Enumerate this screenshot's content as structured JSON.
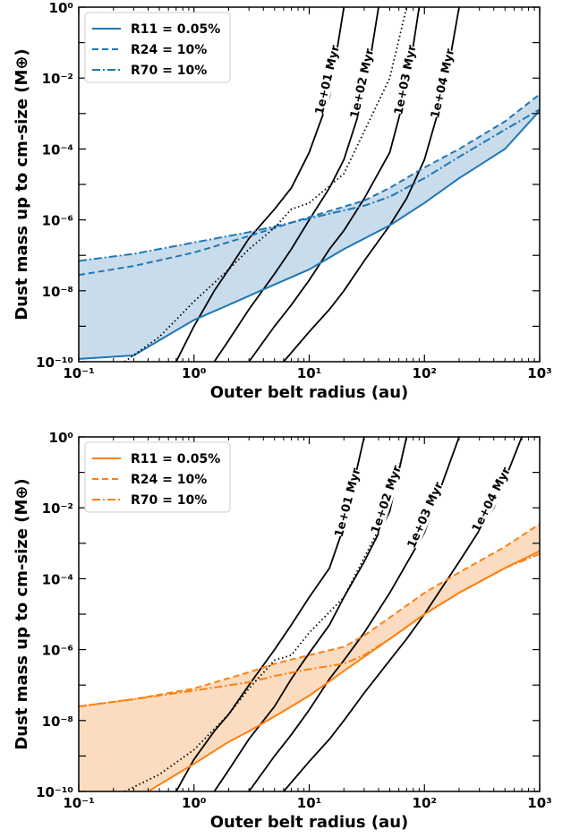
{
  "chart_data": [
    {
      "type": "line",
      "xlabel": "Outer belt radius (au)",
      "ylabel": "Dust mass up to cm-size (M⊕)",
      "xscale": "log",
      "yscale": "log",
      "xlim": [
        0.1,
        1000
      ],
      "ylim": [
        1e-10,
        1
      ],
      "x_ticks": [
        "10⁻¹",
        "10⁰",
        "10¹",
        "10²",
        "10³"
      ],
      "y_ticks": [
        "10⁻¹⁰",
        "10⁻⁸",
        "10⁻⁶",
        "10⁻⁴",
        "10⁻²",
        "10⁰"
      ],
      "legend_position": "top-left",
      "color": "#1f77b4",
      "fill_color": "#c9dcec",
      "shaded_region": "between R11 curve and the upper of the R24 / R70 curves",
      "series": [
        {
          "name": "R11 = 0.05%",
          "sub": "11",
          "style": "solid",
          "x": [
            0.1,
            0.3,
            0.5,
            1,
            2,
            5,
            10,
            20,
            50,
            100,
            200,
            500,
            1000
          ],
          "y": [
            1.2e-10,
            1.5e-10,
            4e-10,
            1.5e-09,
            4e-09,
            1.5e-08,
            4e-08,
            1.5e-07,
            7e-07,
            3e-06,
            1.5e-05,
            0.0001,
            0.0012
          ]
        },
        {
          "name": "R24 = 10%",
          "sub": "24",
          "style": "dashed",
          "x": [
            0.1,
            0.3,
            1,
            3,
            10,
            30,
            50,
            100,
            200,
            500,
            1000
          ],
          "y": [
            2.8e-08,
            5e-08,
            1.2e-07,
            3.5e-07,
            1.2e-06,
            3.5e-06,
            8e-06,
            3e-05,
            0.0001,
            0.0006,
            0.0035
          ]
        },
        {
          "name": "R70 = 10%",
          "sub": "70",
          "style": "dashdot",
          "x": [
            0.1,
            0.3,
            1,
            3,
            10,
            30,
            50,
            100,
            200,
            500,
            1000
          ],
          "y": [
            7e-08,
            1.1e-07,
            2.3e-07,
            4.5e-07,
            1.1e-06,
            2.5e-06,
            4.5e-06,
            1.5e-05,
            6e-05,
            0.00035,
            0.0013
          ]
        },
        {
          "name": "",
          "style": "dotted",
          "x": [
            0.25,
            0.5,
            1,
            2,
            3,
            5,
            7,
            10,
            20,
            50,
            70
          ],
          "y": [
            1e-10,
            5e-10,
            5e-09,
            4e-08,
            1.5e-07,
            6e-07,
            2e-06,
            3e-06,
            2e-05,
            0.01,
            1
          ]
        }
      ],
      "isochrones": [
        {
          "label": "1e+01 Myr",
          "x": [
            0.7,
            1,
            1.5,
            2,
            3,
            5,
            7,
            10,
            15,
            20
          ],
          "y": [
            1e-10,
            1e-09,
            1e-08,
            4e-08,
            3e-07,
            2e-06,
            8e-06,
            8e-05,
            0.003,
            1
          ]
        },
        {
          "label": "1e+02 Myr",
          "x": [
            1.5,
            2,
            3,
            5,
            7,
            10,
            15,
            20,
            30,
            40
          ],
          "y": [
            1e-10,
            4e-10,
            3e-09,
            3e-08,
            1.5e-07,
            1e-06,
            8e-06,
            5e-05,
            0.003,
            1
          ]
        },
        {
          "label": "1e+03 Myr",
          "x": [
            3,
            5,
            7,
            10,
            15,
            20,
            30,
            50,
            70,
            90
          ],
          "y": [
            1e-10,
            1e-09,
            4e-09,
            2e-08,
            1.5e-07,
            5e-07,
            4e-06,
            8e-05,
            0.005,
            1
          ]
        },
        {
          "label": "1e+04 Myr",
          "x": [
            6,
            10,
            15,
            20,
            30,
            50,
            70,
            100,
            150,
            200
          ],
          "y": [
            1e-10,
            7e-10,
            3e-09,
            1e-08,
            7e-08,
            7e-07,
            4e-06,
            5e-05,
            0.005,
            1
          ]
        }
      ]
    },
    {
      "type": "line",
      "xlabel": "Outer belt radius (au)",
      "ylabel": "Dust mass up to cm-size (M⊕)",
      "xscale": "log",
      "yscale": "log",
      "xlim": [
        0.1,
        1000
      ],
      "ylim": [
        1e-10,
        1
      ],
      "x_ticks": [
        "10⁻¹",
        "10⁰",
        "10¹",
        "10²",
        "10³"
      ],
      "y_ticks": [
        "10⁻¹⁰",
        "10⁻⁸",
        "10⁻⁶",
        "10⁻⁴",
        "10⁻²",
        "10⁰"
      ],
      "legend_position": "top-left",
      "color": "#ff7f0e",
      "fill_color": "#fcdcc0",
      "shaded_region": "between R11 curve and the upper of the R24 / R70 curves",
      "series": [
        {
          "name": "R11 = 0.05%",
          "sub": "11",
          "style": "solid",
          "x": [
            0.4,
            0.7,
            1,
            2,
            3,
            5,
            10,
            20,
            50,
            100,
            200,
            500,
            1000
          ],
          "y": [
            1e-10,
            3e-10,
            6e-10,
            2.5e-09,
            5e-09,
            1.3e-08,
            5e-08,
            2.5e-07,
            2e-06,
            1e-05,
            4e-05,
            0.0002,
            0.0006
          ]
        },
        {
          "name": "R24 = 10%",
          "sub": "24",
          "style": "dashed",
          "x": [
            0.1,
            0.3,
            1,
            3,
            5,
            10,
            20,
            30,
            50,
            100,
            200,
            500,
            1000
          ],
          "y": [
            2.5e-08,
            4e-08,
            8e-08,
            2.3e-07,
            4e-07,
            7e-07,
            1.2e-06,
            2.5e-06,
            8e-06,
            4e-05,
            0.00015,
            0.0008,
            0.0035
          ]
        },
        {
          "name": "R70 = 10%",
          "sub": "70",
          "style": "dashdot",
          "x": [
            0.1,
            0.3,
            1,
            3,
            5,
            10,
            20,
            30,
            50,
            100,
            200,
            500,
            1000
          ],
          "y": [
            2.5e-08,
            4e-08,
            7e-08,
            1.2e-07,
            1.8e-07,
            2.8e-07,
            4e-07,
            7e-07,
            2e-06,
            1e-05,
            4e-05,
            0.0002,
            0.0005
          ]
        },
        {
          "name": "",
          "style": "dotted",
          "x": [
            0.25,
            0.5,
            1,
            2,
            3,
            5,
            7,
            10,
            20,
            50,
            70
          ],
          "y": [
            1e-10,
            3e-10,
            1.5e-09,
            1.5e-08,
            8e-08,
            5e-07,
            7e-07,
            3e-06,
            3e-05,
            0.01,
            1
          ]
        }
      ],
      "isochrones": [
        {
          "label": "1e+01 Myr",
          "x": [
            0.7,
            1,
            1.5,
            2,
            3,
            5,
            7,
            10,
            15,
            20,
            30
          ],
          "y": [
            1e-10,
            8e-10,
            5e-09,
            1.5e-08,
            1e-07,
            1e-06,
            5e-06,
            3e-05,
            0.0002,
            0.003,
            1
          ]
        },
        {
          "label": "1e+02 Myr",
          "x": [
            1.5,
            2,
            3,
            5,
            7,
            10,
            15,
            20,
            30,
            50,
            70
          ],
          "y": [
            1e-10,
            4e-10,
            3e-09,
            2.5e-08,
            1.5e-07,
            8e-07,
            5e-06,
            3e-05,
            0.0003,
            0.008,
            1
          ]
        },
        {
          "label": "1e+03 Myr",
          "x": [
            3,
            5,
            7,
            10,
            15,
            20,
            30,
            50,
            100,
            200
          ],
          "y": [
            1e-10,
            1e-09,
            4e-09,
            2e-08,
            1.5e-07,
            5e-07,
            3e-06,
            4e-05,
            0.002,
            1
          ]
        },
        {
          "label": "1e+04 Myr",
          "x": [
            6,
            10,
            15,
            20,
            30,
            50,
            70,
            100,
            200,
            400,
            700
          ],
          "y": [
            1e-10,
            7e-10,
            3e-09,
            1e-08,
            6e-08,
            5e-07,
            2e-06,
            1e-05,
            0.0003,
            0.01,
            1
          ]
        }
      ]
    }
  ]
}
